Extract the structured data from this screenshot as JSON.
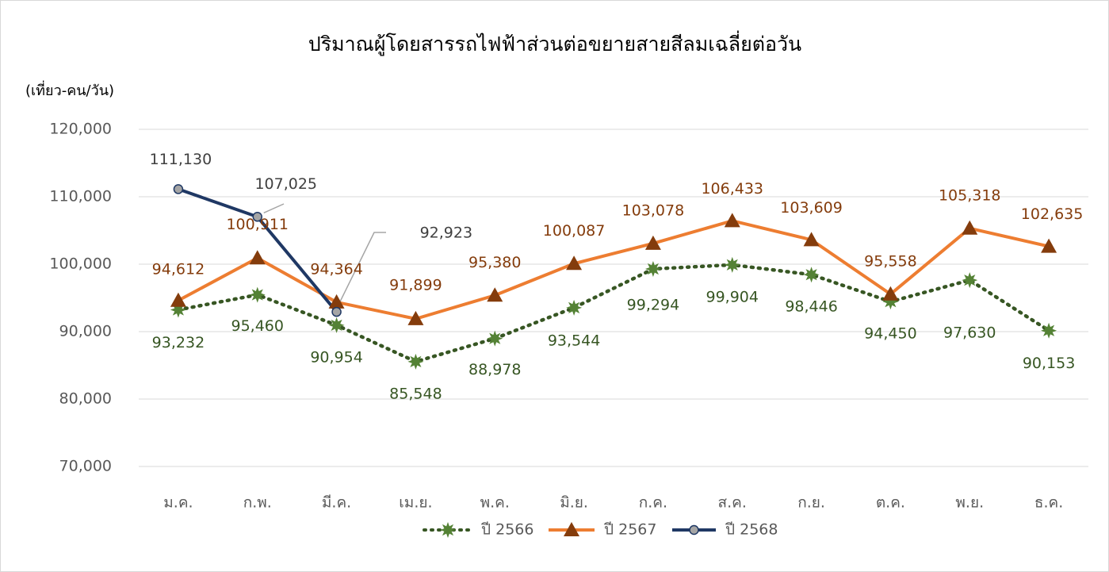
{
  "chart_data": {
    "type": "line",
    "title": "ปริมาณผู้โดยสารรถไฟฟ้าส่วนต่อขยายสายสีลมเฉลี่ยต่อวัน",
    "y_label": "(เที่ยว-คน/วัน)",
    "categories": [
      "ม.ค.",
      "ก.พ.",
      "มี.ค.",
      "เม.ย.",
      "พ.ค.",
      "มิ.ย.",
      "ก.ค.",
      "ส.ค.",
      "ก.ย.",
      "ต.ค.",
      "พ.ย.",
      "ธ.ค."
    ],
    "series": [
      {
        "name": "ปี 2566",
        "color": "#375623",
        "marker_color": "#548235",
        "label_color": "#375623",
        "dash": "dotted",
        "marker": "star",
        "values": [
          93232,
          95460,
          90954,
          85548,
          88978,
          93544,
          99294,
          99904,
          98446,
          94450,
          97630,
          90153
        ],
        "value_labels": [
          "93,232",
          "95,460",
          "90,954",
          "85,548",
          "88,978",
          "93,544",
          "99,294",
          "99,904",
          "98,446",
          "94,450",
          "97,630",
          "90,153"
        ]
      },
      {
        "name": "ปี 2567",
        "color": "#ed7d31",
        "marker_color": "#843c0c",
        "label_color": "#843c0c",
        "dash": "solid",
        "marker": "triangle",
        "values": [
          94612,
          100911,
          94364,
          91899,
          95380,
          100087,
          103078,
          106433,
          103609,
          95558,
          105318,
          102635
        ],
        "value_labels": [
          "94,612",
          "100,911",
          "94,364",
          "91,899",
          "95,380",
          "100,087",
          "103,078",
          "106,433",
          "103,609",
          "95,558",
          "105,318",
          "102,635"
        ]
      },
      {
        "name": "ปี 2568",
        "color": "#1f3864",
        "marker_color": "#a5a5a5",
        "label_color": "#404040",
        "dash": "solid",
        "marker": "circle",
        "values": [
          111130,
          107025,
          92923,
          null,
          null,
          null,
          null,
          null,
          null,
          null,
          null,
          null
        ],
        "value_labels": [
          "111,130",
          "107,025",
          "92,923",
          null,
          null,
          null,
          null,
          null,
          null,
          null,
          null,
          null
        ]
      }
    ],
    "ylim": [
      70000,
      120000
    ],
    "yticks": [
      {
        "value": 70000,
        "label": "70,000"
      },
      {
        "value": 80000,
        "label": "80,000"
      },
      {
        "value": 90000,
        "label": "90,000"
      },
      {
        "value": 100000,
        "label": "100,000"
      },
      {
        "value": 110000,
        "label": "110,000"
      },
      {
        "value": 120000,
        "label": "120,000"
      }
    ],
    "grid": true,
    "legend": "bottom"
  }
}
